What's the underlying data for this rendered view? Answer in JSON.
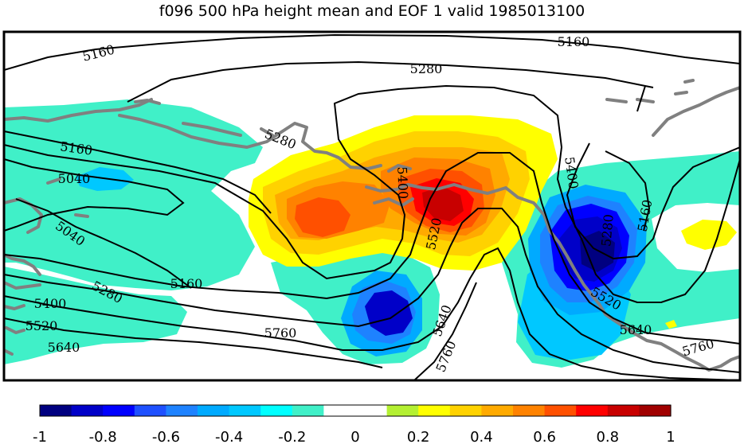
{
  "chart_data": {
    "type": "heatmap",
    "title": "f096 500 hPa height mean and EOF 1 valid 1985013100",
    "xlabel": "",
    "ylabel": "",
    "grid": false,
    "colorbar": {
      "placement": "bottom",
      "range": [
        -1,
        1
      ],
      "tick_labels": [
        "-1",
        "-0.8",
        "-0.6",
        "-0.4",
        "-0.2",
        "0",
        "0.2",
        "0.4",
        "0.6",
        "0.8",
        "1"
      ],
      "bin_colors": [
        "#000080",
        "#0000c8",
        "#0000ff",
        "#1e50ff",
        "#1e82ff",
        "#00aaff",
        "#00c8ff",
        "#00ffff",
        "#40f0c8",
        "#ffffff",
        "#ffffff",
        "#b4f032",
        "#ffff00",
        "#ffd200",
        "#ffaa00",
        "#ff8200",
        "#ff5000",
        "#ff0000",
        "#c80000",
        "#a00000"
      ]
    },
    "contour_labels": [
      {
        "text": "5160",
        "value": 5160
      },
      {
        "text": "5160",
        "value": 5160
      },
      {
        "text": "5280",
        "value": 5280
      },
      {
        "text": "5280",
        "value": 5280
      },
      {
        "text": "5160",
        "value": 5160
      },
      {
        "text": "5040",
        "value": 5040
      },
      {
        "text": "5040",
        "value": 5040
      },
      {
        "text": "5400",
        "value": 5400
      },
      {
        "text": "5400",
        "value": 5400
      },
      {
        "text": "5520",
        "value": 5520
      },
      {
        "text": "5160",
        "value": 5160
      },
      {
        "text": "5280",
        "value": 5280
      },
      {
        "text": "5280",
        "value": 5280
      },
      {
        "text": "5160",
        "value": 5160
      },
      {
        "text": "5400",
        "value": 5400
      },
      {
        "text": "5520",
        "value": 5520
      },
      {
        "text": "5520",
        "value": 5520
      },
      {
        "text": "5640",
        "value": 5640
      },
      {
        "text": "5760",
        "value": 5760
      },
      {
        "text": "5640",
        "value": 5640
      },
      {
        "text": "5760",
        "value": 5760
      },
      {
        "text": "5640",
        "value": 5640
      },
      {
        "text": "5760",
        "value": 5760
      }
    ],
    "anomaly_centers": [
      {
        "sign": "positive",
        "peak": 0.8
      },
      {
        "sign": "positive",
        "peak": 0.7
      },
      {
        "sign": "negative",
        "peak": -0.8
      },
      {
        "sign": "negative",
        "peak": -0.8
      },
      {
        "sign": "negative",
        "peak": -0.4
      },
      {
        "sign": "positive",
        "peak": 0.2
      }
    ]
  }
}
